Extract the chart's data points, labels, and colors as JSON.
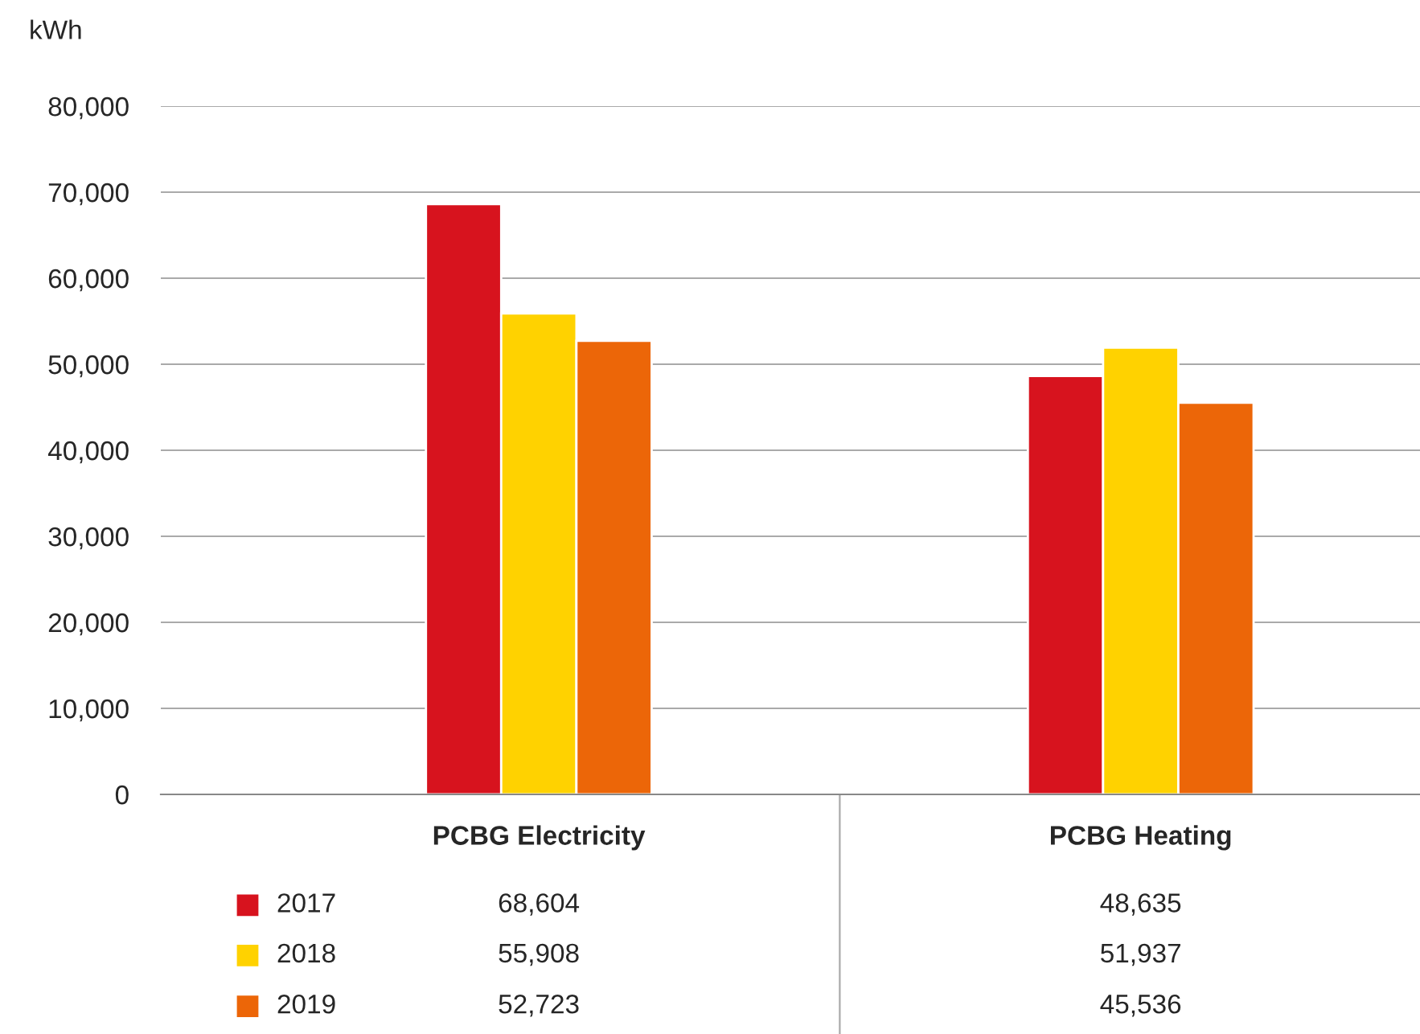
{
  "chart_data": {
    "type": "bar",
    "ylabel": "kWh",
    "categories": [
      "PCBG Electricity",
      "PCBG Heating"
    ],
    "series": [
      {
        "name": "2017",
        "color": "#d7131e",
        "values": [
          68604,
          48635
        ],
        "value_labels": [
          "68,604",
          "48,635"
        ]
      },
      {
        "name": "2018",
        "color": "#ffd200",
        "values": [
          55908,
          51937
        ],
        "value_labels": [
          "55,908",
          "51,937"
        ]
      },
      {
        "name": "2019",
        "color": "#ec6608",
        "values": [
          52723,
          45536
        ],
        "value_labels": [
          "52,723",
          "45,536"
        ]
      }
    ],
    "ylim": [
      0,
      80000
    ],
    "yticks": [
      {
        "value": 0,
        "label": "0"
      },
      {
        "value": 10000,
        "label": "10,000"
      },
      {
        "value": 20000,
        "label": "20,000"
      },
      {
        "value": 30000,
        "label": "30,000"
      },
      {
        "value": 40000,
        "label": "40,000"
      },
      {
        "value": 50000,
        "label": "50,000"
      },
      {
        "value": 60000,
        "label": "60,000"
      },
      {
        "value": 70000,
        "label": "70,000"
      },
      {
        "value": 80000,
        "label": "80,000"
      }
    ],
    "grid": "y",
    "legend": "bottom"
  }
}
